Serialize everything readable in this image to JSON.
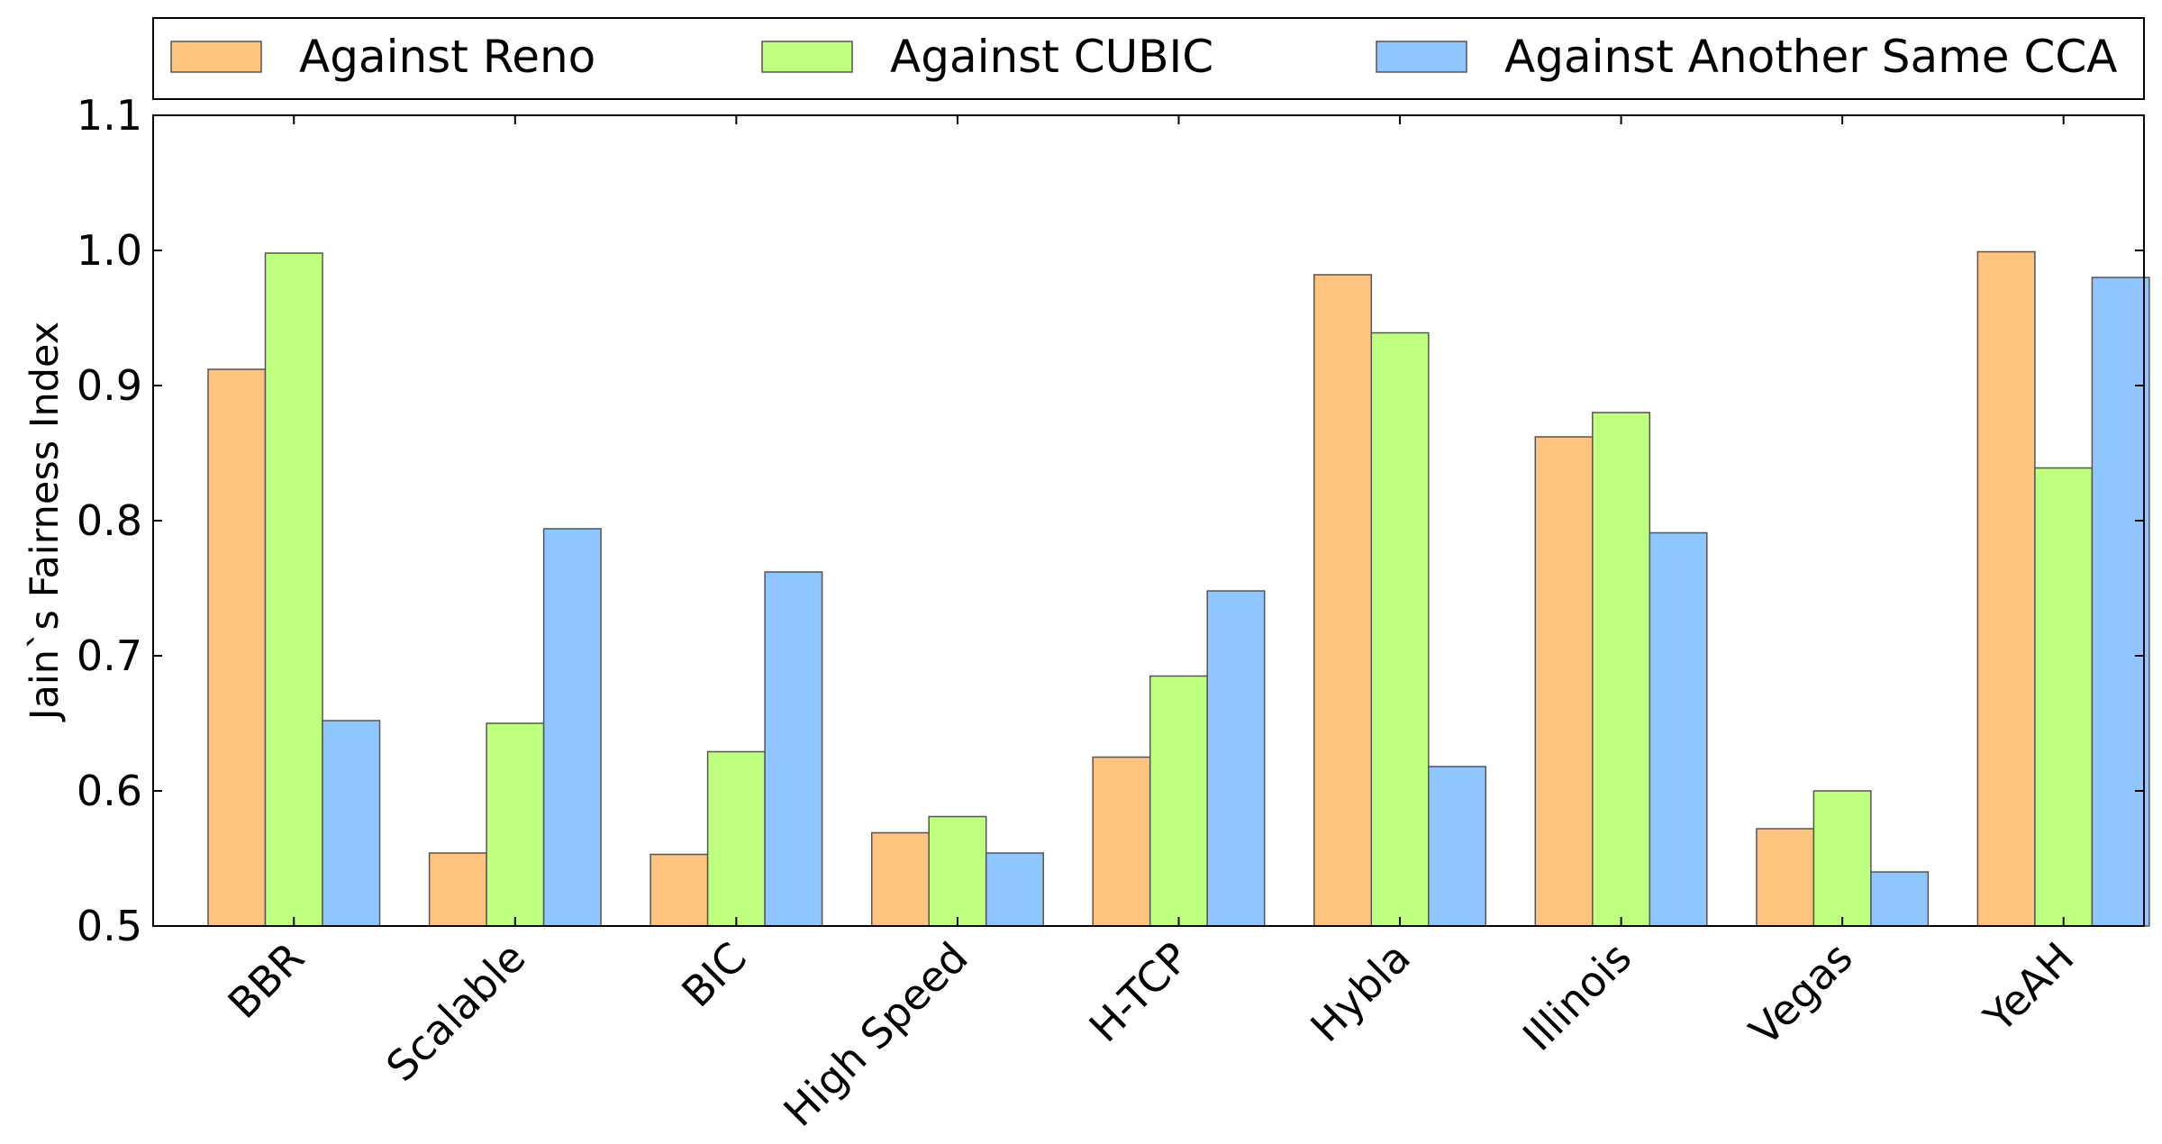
{
  "chart_data": {
    "type": "bar",
    "ylabel": "Jain`s Fairness Index",
    "xlabel": "",
    "ylim": [
      0.5,
      1.1
    ],
    "yticks": [
      0.5,
      0.6,
      0.7,
      0.8,
      0.9,
      1.0,
      1.1
    ],
    "ytick_labels": [
      "0.5",
      "0.6",
      "0.7",
      "0.8",
      "0.9",
      "1.0",
      "1.1"
    ],
    "categories": [
      "BBR",
      "Scalable",
      "BIC",
      "High Speed",
      "H-TCP",
      "Hybla",
      "Illinois",
      "Vegas",
      "YeAH"
    ],
    "legend_position": "top, outside plot",
    "grid": false,
    "series": [
      {
        "name": "Against Reno",
        "color": "#ffc380",
        "values": [
          0.912,
          0.554,
          0.553,
          0.569,
          0.625,
          0.982,
          0.862,
          0.572,
          0.999
        ]
      },
      {
        "name": "Against CUBIC",
        "color": "#bfff80",
        "values": [
          0.998,
          0.65,
          0.629,
          0.581,
          0.685,
          0.939,
          0.88,
          0.6,
          0.839
        ]
      },
      {
        "name": "Against Another Same CCA",
        "color": "#8fc6ff",
        "values": [
          0.652,
          0.794,
          0.762,
          0.554,
          0.748,
          0.618,
          0.791,
          0.54,
          0.98
        ]
      }
    ]
  }
}
